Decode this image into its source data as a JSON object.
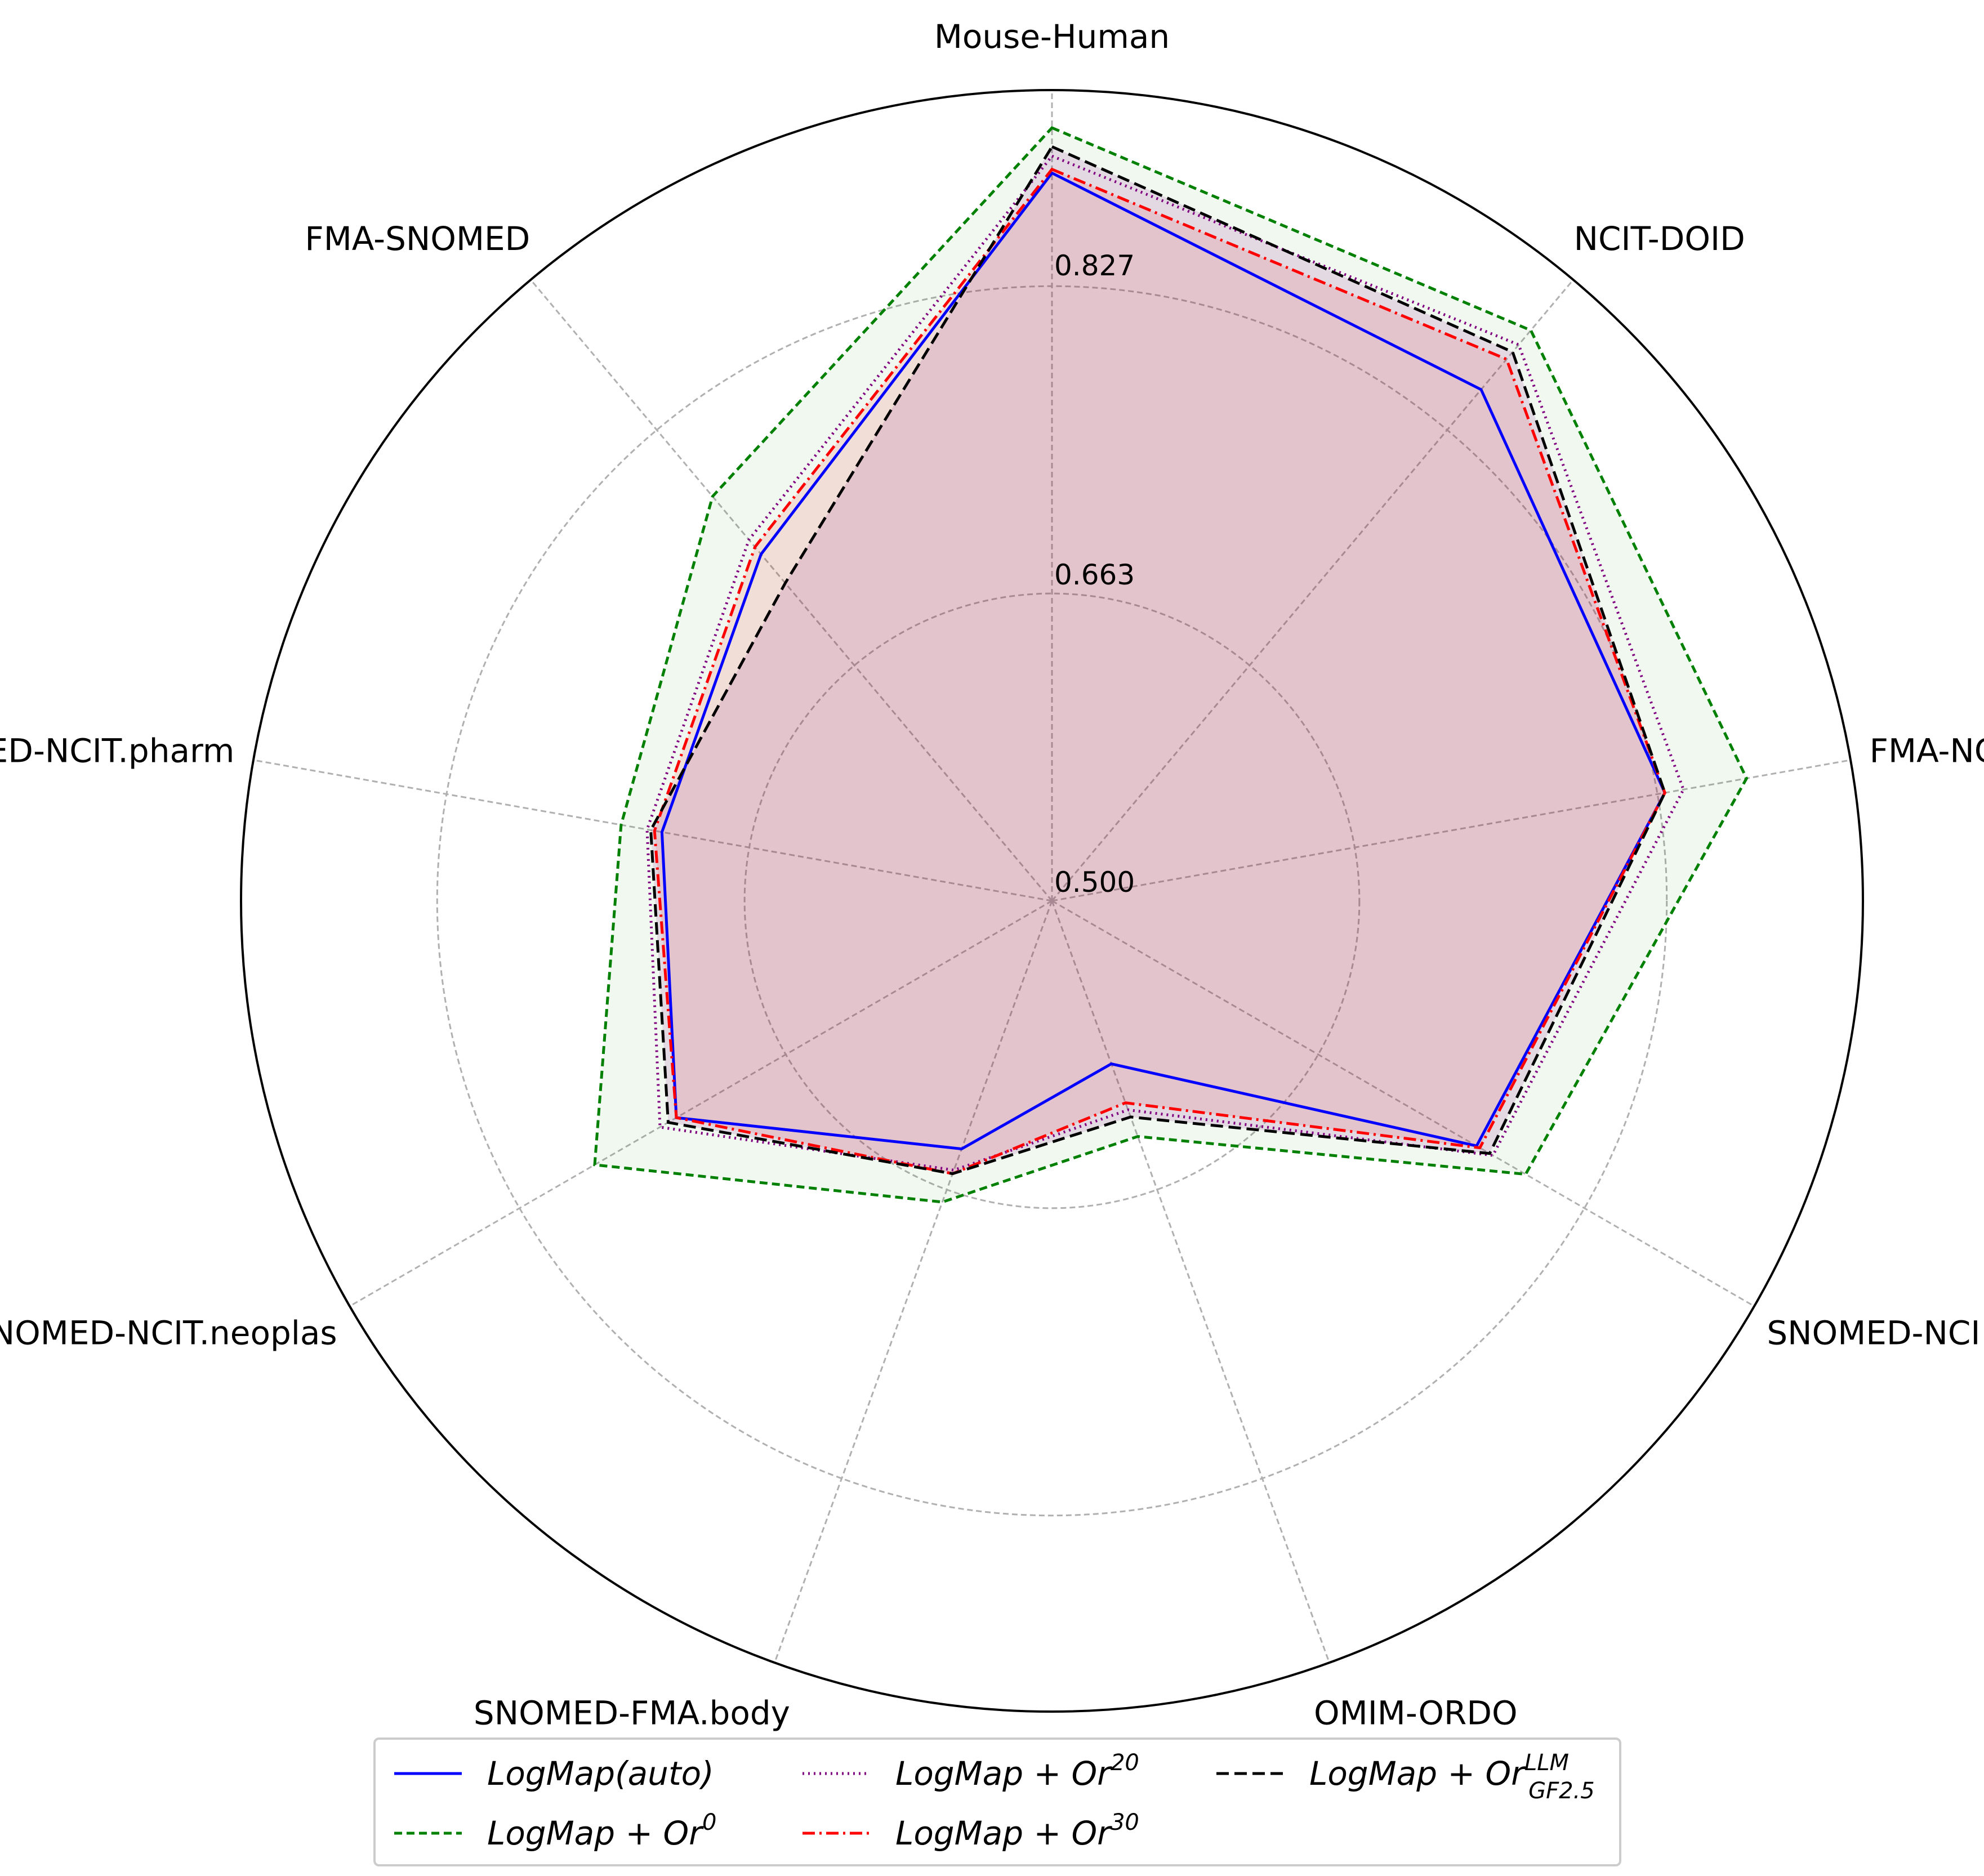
{
  "chart_data": {
    "type": "radar",
    "title": "",
    "categories": [
      "Mouse-Human",
      "NCIT-DOID",
      "FMA-NCI",
      "SNOMED-NCI",
      "OMIM-ORDO",
      "SNOMED-FMA.body",
      "SNOMED-NCIT.neoplas",
      "SNOMED-NCIT.pharm",
      "FMA-SNOMED"
    ],
    "rlim": [
      0.5,
      0.93
    ],
    "rticks": [
      "0.500",
      "0.663",
      "0.827"
    ],
    "rtick_values": [
      0.5,
      0.663,
      0.827
    ],
    "grid": true,
    "legend_placement": "bottom",
    "series": [
      {
        "name": "LogMap(auto)",
        "label_main": "LogMap(auto)",
        "label_sup": "",
        "label_sub": "",
        "color": "#0000ff",
        "dash": "",
        "fill": false,
        "values": [
          0.886,
          0.854,
          0.83,
          0.76,
          0.592,
          0.64,
          0.73,
          0.71,
          0.74
        ]
      },
      {
        "name": "LogMap + Or^0",
        "label_main": "LogMap + Or",
        "label_sup": "0",
        "label_sub": "",
        "color": "#008000",
        "dash": "14,8",
        "fill": true,
        "fill_color": "#008000",
        "fill_opacity": 0.06,
        "values": [
          0.91,
          0.895,
          0.874,
          0.79,
          0.633,
          0.67,
          0.78,
          0.732,
          0.78
        ]
      },
      {
        "name": "LogMap + Or^20",
        "label_main": "LogMap + Or",
        "label_sup": "20",
        "label_sub": "",
        "color": "#800080",
        "dash": "3,7",
        "fill": false,
        "values": [
          0.895,
          0.885,
          0.84,
          0.77,
          0.618,
          0.652,
          0.74,
          0.718,
          0.75
        ]
      },
      {
        "name": "LogMap + Or^30",
        "label_main": "LogMap + Or",
        "label_sup": "30",
        "label_sub": "",
        "color": "#ff0000",
        "dash": "22,8,4,8",
        "fill": true,
        "fill_color": "#ff0000",
        "fill_opacity": 0.1,
        "values": [
          0.888,
          0.875,
          0.83,
          0.762,
          0.614,
          0.654,
          0.73,
          0.714,
          0.745
        ]
      },
      {
        "name": "LogMap + Or_GF2.5^LLM",
        "label_main": "LogMap + Or",
        "label_sup": "LLM",
        "label_sub": "GF2.5",
        "color": "#000000",
        "dash": "22,10",
        "fill": true,
        "fill_color": "#800080",
        "fill_opacity": 0.12,
        "values": [
          0.9,
          0.88,
          0.83,
          0.768,
          0.622,
          0.654,
          0.735,
          0.716,
          0.72
        ]
      }
    ]
  }
}
